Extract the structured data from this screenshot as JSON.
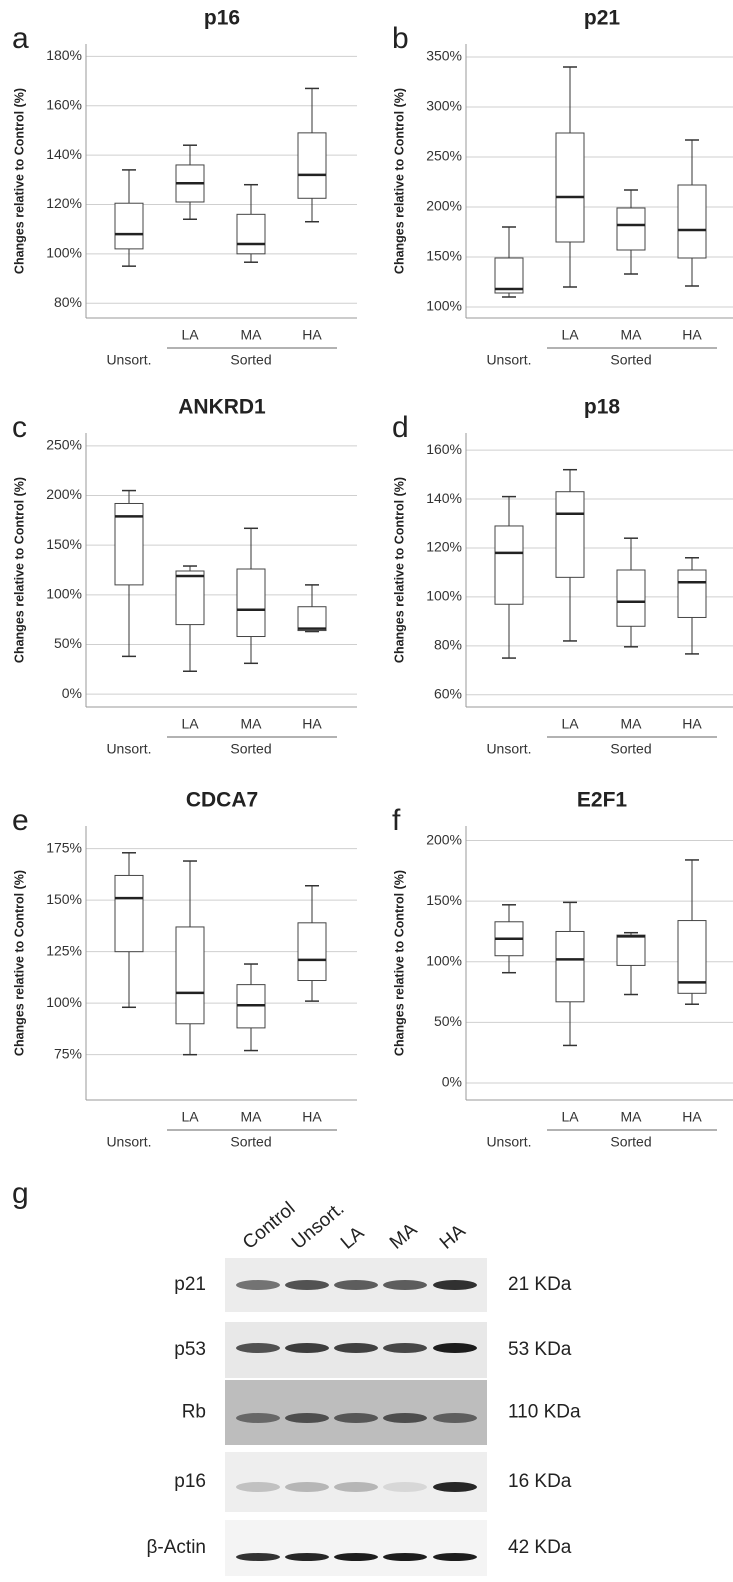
{
  "chart_data": [
    {
      "type": "box",
      "panel": "a",
      "title": "p16",
      "ylabel": "Changes relative to Control (%)",
      "group_label": "Sorted",
      "categories": [
        "Unsort.",
        "LA",
        "MA",
        "HA"
      ],
      "stats": [
        {
          "min": 95,
          "q1": 102,
          "median": 108,
          "q3": 120.5,
          "max": 134
        },
        {
          "min": 114,
          "q1": 121,
          "median": 128.6,
          "q3": 136,
          "max": 144
        },
        {
          "min": 96.6,
          "q1": 100,
          "median": 104,
          "q3": 116,
          "max": 128
        },
        {
          "min": 113,
          "q1": 122.5,
          "median": 132,
          "q3": 149,
          "max": 167
        }
      ],
      "ylim": [
        74,
        185
      ],
      "yticks": [
        {
          "value": 80,
          "label": "80%"
        },
        {
          "value": 100,
          "label": "100%"
        },
        {
          "value": 120,
          "label": "120%"
        },
        {
          "value": 140,
          "label": "140%"
        },
        {
          "value": 160,
          "label": "160%"
        },
        {
          "value": 180,
          "label": "180%"
        }
      ],
      "grid": true
    },
    {
      "type": "box",
      "panel": "b",
      "title": "p21",
      "ylabel": "Changes relative to Control (%)",
      "group_label": "Sorted",
      "categories": [
        "Unsort.",
        "LA",
        "MA",
        "HA"
      ],
      "stats": [
        {
          "min": 110,
          "q1": 114,
          "median": 118,
          "q3": 149,
          "max": 180
        },
        {
          "min": 120,
          "q1": 165,
          "median": 210,
          "q3": 274,
          "max": 340
        },
        {
          "min": 133,
          "q1": 157,
          "median": 182,
          "q3": 199,
          "max": 217
        },
        {
          "min": 121,
          "q1": 149,
          "median": 177,
          "q3": 222,
          "max": 267
        }
      ],
      "ylim": [
        89,
        363
      ],
      "yticks": [
        {
          "value": 100,
          "label": "100%"
        },
        {
          "value": 150,
          "label": "150%"
        },
        {
          "value": 200,
          "label": "200%"
        },
        {
          "value": 250,
          "label": "250%"
        },
        {
          "value": 300,
          "label": "300%"
        },
        {
          "value": 350,
          "label": "350%"
        }
      ],
      "grid": true
    },
    {
      "type": "box",
      "panel": "c",
      "title": "ANKRD1",
      "ylabel": "Changes relative to Control (%)",
      "group_label": "Sorted",
      "categories": [
        "Unsort.",
        "LA",
        "MA",
        "HA"
      ],
      "stats": [
        {
          "min": 38,
          "q1": 110,
          "median": 179,
          "q3": 192,
          "max": 205
        },
        {
          "min": 23,
          "q1": 70,
          "median": 119,
          "q3": 124,
          "max": 129
        },
        {
          "min": 31,
          "q1": 58,
          "median": 85,
          "q3": 126,
          "max": 167
        },
        {
          "min": 63,
          "q1": 64,
          "median": 66,
          "q3": 88,
          "max": 110
        }
      ],
      "ylim": [
        -13,
        263
      ],
      "yticks": [
        {
          "value": 0,
          "label": "0%"
        },
        {
          "value": 50,
          "label": "50%"
        },
        {
          "value": 100,
          "label": "100%"
        },
        {
          "value": 150,
          "label": "150%"
        },
        {
          "value": 200,
          "label": "200%"
        },
        {
          "value": 250,
          "label": "250%"
        }
      ],
      "grid": true
    },
    {
      "type": "box",
      "panel": "d",
      "title": "p18",
      "ylabel": "Changes relative to Control (%)",
      "group_label": "Sorted",
      "categories": [
        "Unsort.",
        "LA",
        "MA",
        "HA"
      ],
      "stats": [
        {
          "min": 75,
          "q1": 97,
          "median": 118,
          "q3": 129,
          "max": 141
        },
        {
          "min": 82,
          "q1": 108,
          "median": 134,
          "q3": 143,
          "max": 152
        },
        {
          "min": 79.6,
          "q1": 88,
          "median": 98,
          "q3": 111,
          "max": 124
        },
        {
          "min": 76.7,
          "q1": 91.6,
          "median": 106,
          "q3": 111,
          "max": 116
        }
      ],
      "ylim": [
        55,
        167
      ],
      "yticks": [
        {
          "value": 60,
          "label": "60%"
        },
        {
          "value": 80,
          "label": "80%"
        },
        {
          "value": 100,
          "label": "100%"
        },
        {
          "value": 120,
          "label": "120%"
        },
        {
          "value": 140,
          "label": "140%"
        },
        {
          "value": 160,
          "label": "160%"
        }
      ],
      "grid": true
    },
    {
      "type": "box",
      "panel": "e",
      "title": "CDCA7",
      "ylabel": "Changes relative to Control (%)",
      "group_label": "Sorted",
      "categories": [
        "Unsort.",
        "LA",
        "MA",
        "HA"
      ],
      "stats": [
        {
          "min": 98,
          "q1": 125,
          "median": 151,
          "q3": 162,
          "max": 173
        },
        {
          "min": 75,
          "q1": 90,
          "median": 105,
          "q3": 137,
          "max": 169
        },
        {
          "min": 77,
          "q1": 88,
          "median": 99,
          "q3": 109,
          "max": 119
        },
        {
          "min": 101,
          "q1": 111,
          "median": 121,
          "q3": 139,
          "max": 157
        }
      ],
      "ylim": [
        53,
        186
      ],
      "yticks": [
        {
          "value": 75,
          "label": "75%"
        },
        {
          "value": 100,
          "label": "100%"
        },
        {
          "value": 125,
          "label": "125%"
        },
        {
          "value": 150,
          "label": "150%"
        },
        {
          "value": 175,
          "label": "175%"
        }
      ],
      "grid": true
    },
    {
      "type": "box",
      "panel": "f",
      "title": "E2F1",
      "ylabel": "Changes relative to Control (%)",
      "group_label": "Sorted",
      "categories": [
        "Unsort.",
        "LA",
        "MA",
        "HA"
      ],
      "stats": [
        {
          "min": 91,
          "q1": 105,
          "median": 119,
          "q3": 133,
          "max": 147
        },
        {
          "min": 31,
          "q1": 67,
          "median": 102,
          "q3": 125,
          "max": 149
        },
        {
          "min": 73,
          "q1": 97,
          "median": 121,
          "q3": 122,
          "max": 124
        },
        {
          "min": 65,
          "q1": 74,
          "median": 83,
          "q3": 134,
          "max": 184
        }
      ],
      "ylim": [
        -14,
        212
      ],
      "yticks": [
        {
          "value": 0,
          "label": "0%"
        },
        {
          "value": 50,
          "label": "50%"
        },
        {
          "value": 100,
          "label": "100%"
        },
        {
          "value": 150,
          "label": "150%"
        },
        {
          "value": 200,
          "label": "200%"
        }
      ],
      "grid": true
    }
  ],
  "blot": {
    "panel": "g",
    "lanes": [
      "Control",
      "Unsort.",
      "LA",
      "MA",
      "HA"
    ],
    "rows": [
      {
        "protein": "p21",
        "size": "21 KDa"
      },
      {
        "protein": "p53",
        "size": "53 KDa"
      },
      {
        "protein": "Rb",
        "size": "110 KDa"
      },
      {
        "protein": "p16",
        "size": "16 KDa"
      },
      {
        "protein": "β-Actin",
        "size": "42 KDa"
      }
    ]
  }
}
